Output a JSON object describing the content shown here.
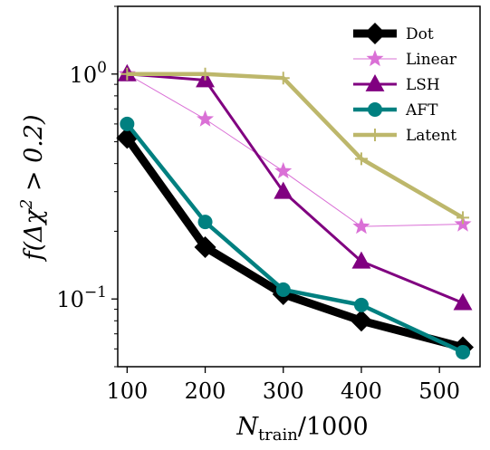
{
  "chart_data": {
    "type": "line",
    "title": "",
    "xlabel": "N_train/1000",
    "xlabel_parts": {
      "main": "N",
      "sub": "train",
      "rest": "/1000"
    },
    "ylabel": "f(Δχ² > 0.2)",
    "ylabel_parts": {
      "pre": "f(Δχ",
      "sup": "2",
      "post": " > 0.2)"
    },
    "yscale": "log",
    "xlim": [
      88,
      552
    ],
    "ylim": [
      0.05,
      2.0
    ],
    "grid": false,
    "legend_position": "top-right",
    "x_ticks": [
      {
        "value": 100,
        "label": "100"
      },
      {
        "value": 200,
        "label": "200"
      },
      {
        "value": 300,
        "label": "300"
      },
      {
        "value": 400,
        "label": "400"
      },
      {
        "value": 500,
        "label": "500"
      }
    ],
    "y_ticks": [
      {
        "value": 1.0,
        "base": "10",
        "exp": "0"
      },
      {
        "value": 0.1,
        "base": "10",
        "exp": "−1"
      }
    ],
    "series": [
      {
        "name": "Dot",
        "color": "#000000",
        "marker": "diamond",
        "x": [
          100,
          200,
          300,
          400,
          530
        ],
        "y": [
          0.52,
          0.17,
          0.105,
          0.08,
          0.061
        ]
      },
      {
        "name": "Linear",
        "color": "#da70d6",
        "marker": "star",
        "x": [
          100,
          200,
          300,
          400,
          530
        ],
        "y": [
          1.0,
          0.63,
          0.37,
          0.21,
          0.215
        ]
      },
      {
        "name": "LSH",
        "color": "#800080",
        "marker": "triangle",
        "x": [
          100,
          200,
          300,
          400,
          530
        ],
        "y": [
          1.0,
          0.94,
          0.3,
          0.147,
          0.096
        ]
      },
      {
        "name": "AFT",
        "color": "#008080",
        "marker": "circle",
        "x": [
          100,
          200,
          300,
          400,
          530
        ],
        "y": [
          0.6,
          0.22,
          0.11,
          0.094,
          0.058
        ]
      },
      {
        "name": "Latent",
        "color": "#bdb76b",
        "marker": "plus",
        "x": [
          100,
          200,
          300,
          400,
          530
        ],
        "y": [
          1.0,
          1.0,
          0.96,
          0.42,
          0.23
        ]
      }
    ]
  }
}
